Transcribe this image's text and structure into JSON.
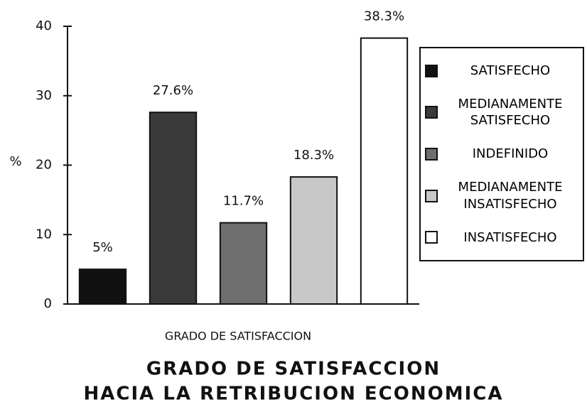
{
  "chart_data": {
    "type": "bar",
    "title": [
      "GRADO DE SATISFACCION",
      "HACIA LA RETRIBUCION ECONOMICA"
    ],
    "x_label": "GRADO DE SATISFACCION",
    "y_label": "%",
    "categories": [
      "SATISFECHO",
      "MEDIANAMENTE SATISFECHO",
      "INDEFINIDO",
      "MEDIANAMENTE INSATISFECHO",
      "INSATISFECHO"
    ],
    "values": [
      5,
      27.6,
      11.7,
      18.3,
      38.3
    ],
    "value_labels": [
      "5%",
      "27.6%",
      "11.7%",
      "18.3%",
      "38.3%"
    ],
    "colors": [
      "#111111",
      "#3a3a3a",
      "#6e6e6e",
      "#c8c8c8",
      "#ffffff"
    ],
    "ylim": [
      0,
      40
    ],
    "yticks": [
      0,
      10,
      20,
      30,
      40
    ],
    "grid": false
  }
}
